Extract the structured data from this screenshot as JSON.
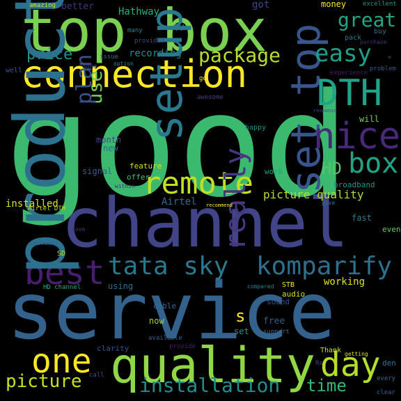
{
  "background": "#000000",
  "words": [
    {
      "text": "good",
      "color": "#3bba6f"
    },
    {
      "text": "service",
      "color": "#33638d"
    },
    {
      "text": "channel",
      "color": "#414487"
    },
    {
      "text": "top box",
      "color": "#7ad151"
    },
    {
      "text": "connection",
      "color": "#fde725"
    },
    {
      "text": "quality",
      "color": "#8fd744"
    },
    {
      "text": "set top",
      "color": "#39568c"
    },
    {
      "text": "tata sky",
      "color": "#2a788e"
    },
    {
      "text": "komparify",
      "color": "#2d708e"
    },
    {
      "text": "DTH",
      "color": "#20a386"
    },
    {
      "text": "nice",
      "color": "#482878"
    },
    {
      "text": "remote",
      "color": "#c2df23"
    },
    {
      "text": "best",
      "color": "#481f70"
    },
    {
      "text": "one",
      "color": "#fde725"
    },
    {
      "text": "day",
      "color": "#b5de2b"
    },
    {
      "text": "box",
      "color": "#20a486"
    },
    {
      "text": "HD",
      "color": "#54c568"
    },
    {
      "text": "easy",
      "color": "#1f9e89"
    },
    {
      "text": "great",
      "color": "#22a785"
    },
    {
      "text": "package",
      "color": "#b8de29"
    },
    {
      "text": "price",
      "color": "#1f948c"
    },
    {
      "text": "picture",
      "color": "#c8e020"
    },
    {
      "text": "installation",
      "color": "#21908d"
    },
    {
      "text": "time",
      "color": "#35b779"
    },
    {
      "text": "product",
      "color": "#2c728e"
    },
    {
      "text": "picture quality",
      "color": "#b5de2b"
    },
    {
      "text": "s",
      "color": "#fde725"
    },
    {
      "text": "working",
      "color": "#dfe318"
    },
    {
      "text": "recording",
      "color": "#228c8d"
    },
    {
      "text": "Hathway",
      "color": "#29af7f"
    },
    {
      "text": "installed",
      "color": "#d8e219"
    },
    {
      "text": "Airtel",
      "color": "#306a8e"
    },
    {
      "text": "TV",
      "color": "#2a788e"
    },
    {
      "text": "got",
      "color": "#3e4a89"
    },
    {
      "text": "money",
      "color": "#fde725"
    },
    {
      "text": "better",
      "color": "#46327e"
    },
    {
      "text": "amazing",
      "color": "#d2e21b"
    },
    {
      "text": "excellent",
      "color": "#1f958b"
    },
    {
      "text": "month",
      "color": "#404688"
    },
    {
      "text": "new",
      "color": "#2f6c8e"
    },
    {
      "text": "signal",
      "color": "#365c8d"
    },
    {
      "text": "feature",
      "color": "#d8e219"
    },
    {
      "text": "offer",
      "color": "#46c06f"
    },
    {
      "text": "work",
      "color": "#1f9e89"
    },
    {
      "text": "will",
      "color": "#77d153"
    },
    {
      "text": "broadband",
      "color": "#1f968b"
    },
    {
      "text": "fast",
      "color": "#2a788e"
    },
    {
      "text": "even",
      "color": "#6ccd5a"
    },
    {
      "text": "audio",
      "color": "#d2e21b"
    },
    {
      "text": "sound",
      "color": "#3d4d8a"
    },
    {
      "text": "free",
      "color": "#365c8d"
    },
    {
      "text": "now",
      "color": "#9bd93c"
    },
    {
      "text": "using",
      "color": "#2d708e"
    },
    {
      "text": "set",
      "color": "#1f968b"
    },
    {
      "text": "cable",
      "color": "#2e6e8e"
    },
    {
      "text": "clarity",
      "color": "#3b528b"
    },
    {
      "text": "STB",
      "color": "#fde725"
    },
    {
      "text": "Thank",
      "color": "#cde11d"
    },
    {
      "text": "den",
      "color": "#2a788e"
    },
    {
      "text": "happy",
      "color": "#20928c"
    },
    {
      "text": "setup box",
      "color": "#29798e"
    },
    {
      "text": "customer",
      "color": "#365d8d"
    },
    {
      "text": "Airtel DTH",
      "color": "#c0df25"
    },
    {
      "text": "SD",
      "color": "#b8de29"
    },
    {
      "text": "love",
      "color": "#443a83"
    },
    {
      "text": "really",
      "color": "#453781"
    },
    {
      "text": "HD channel",
      "color": "#26ad81"
    },
    {
      "text": "compared",
      "color": "#23898e"
    },
    {
      "text": "recommend",
      "color": "#fde725"
    },
    {
      "text": "within",
      "color": "#482475"
    },
    {
      "text": "give",
      "color": "#2a788e"
    },
    {
      "text": "available",
      "color": "#34618d"
    },
    {
      "text": "provide",
      "color": "#481b6d"
    },
    {
      "text": "call",
      "color": "#3b528b"
    },
    {
      "text": "support",
      "color": "#2f6b8e"
    },
    {
      "text": "getting",
      "color": "#d8e219"
    },
    {
      "text": "Rs",
      "color": "#404588"
    },
    {
      "text": "every",
      "color": "#306a8e"
    },
    {
      "text": "clear",
      "color": "#365d8d"
    },
    {
      "text": "many",
      "color": "#26828e"
    },
    {
      "text": "provided",
      "color": "#3f4889"
    },
    {
      "text": "issue",
      "color": "#2e6d8e"
    },
    {
      "text": "option",
      "color": "#23888e"
    },
    {
      "text": "done",
      "color": "#3e4c8a"
    },
    {
      "text": "use",
      "color": "#73d056"
    },
    {
      "text": "plan",
      "color": "#3b518b"
    },
    {
      "text": "go",
      "color": "#fde725"
    },
    {
      "text": "awesome",
      "color": "#424086"
    },
    {
      "text": "well",
      "color": "#375a8c"
    },
    {
      "text": "buy",
      "color": "#2e6f8e"
    },
    {
      "text": "pack",
      "color": "#2a788e"
    },
    {
      "text": "purchase",
      "color": "#46327e"
    },
    {
      "text": "experience",
      "color": "#481a6c"
    },
    {
      "text": "problem",
      "color": "#39558c"
    },
    {
      "text": "response",
      "color": "#3e4989"
    },
    {
      "text": "m",
      "color": "#2b758e"
    }
  ]
}
